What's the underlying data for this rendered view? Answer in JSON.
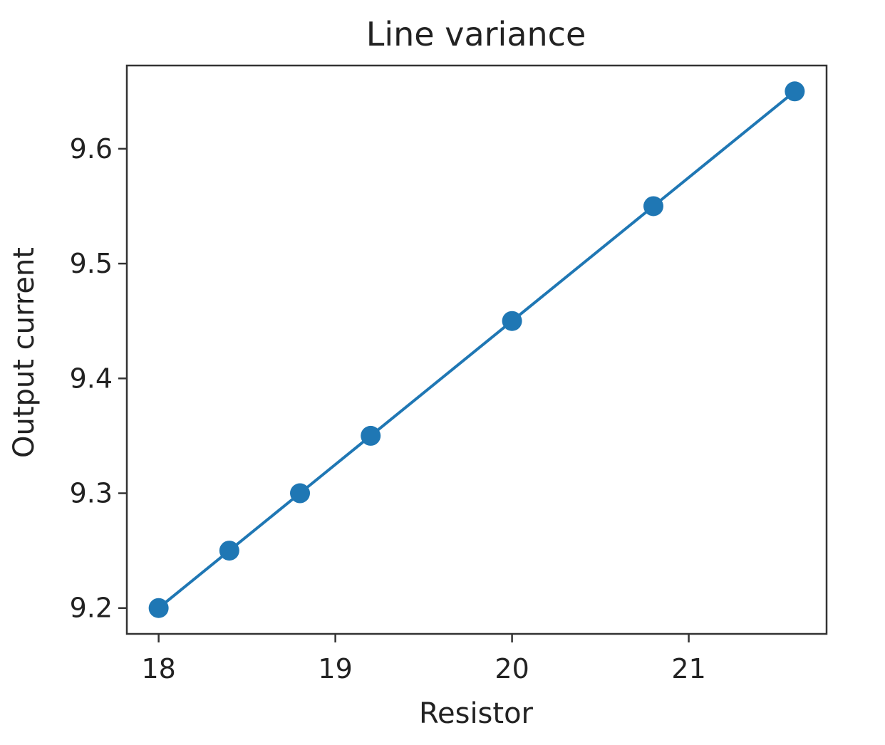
{
  "chart_data": {
    "type": "line",
    "title": "Line variance",
    "xlabel": "Resistor",
    "ylabel": "Output current",
    "x": [
      18.0,
      18.4,
      18.8,
      19.2,
      20.0,
      20.8,
      21.6
    ],
    "series": [
      {
        "values": [
          9.2,
          9.25,
          9.3,
          9.35,
          9.45,
          9.55,
          9.65
        ],
        "color": "#1f77b4",
        "marker": "circle"
      }
    ],
    "xlim": [
      17.82,
      21.78
    ],
    "ylim": [
      9.1775,
      9.6725
    ],
    "xticks": [
      18,
      19,
      20,
      21
    ],
    "xtick_labels": [
      "18",
      "19",
      "20",
      "21"
    ],
    "yticks": [
      9.2,
      9.3,
      9.4,
      9.5,
      9.6
    ],
    "ytick_labels": [
      "9.2",
      "9.3",
      "9.4",
      "9.5",
      "9.6"
    ],
    "grid": false,
    "legend": false
  }
}
